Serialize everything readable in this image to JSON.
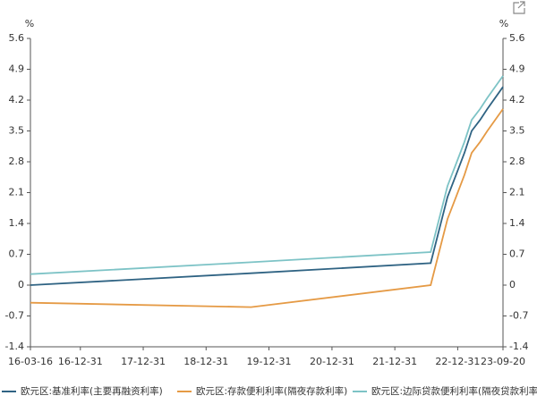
{
  "chart_data": {
    "type": "line",
    "y_unit": "%",
    "y2_unit": "%",
    "x": [
      "16-03-16",
      "19-09-18",
      "22-07-27",
      "22-09-14",
      "22-11-02",
      "22-12-21",
      "23-02-08",
      "23-03-22",
      "23-05-10",
      "23-06-21",
      "23-09-20"
    ],
    "xlim": [
      "16-03-16",
      "23-09-20"
    ],
    "xticks": [
      "16-03-16",
      "16-12-31",
      "17-12-31",
      "18-12-31",
      "19-12-31",
      "20-12-31",
      "21-12-31",
      "22-12-31",
      "23-09-20"
    ],
    "ylim": [
      -1.4,
      5.6
    ],
    "yticks": [
      -1.4,
      -0.7,
      0,
      0.7,
      1.4,
      2.1,
      2.8,
      3.5,
      4.2,
      4.9,
      5.6
    ],
    "y2lim": [
      -1.4,
      5.6
    ],
    "y2ticks": [
      -1.4,
      -0.7,
      0,
      0.7,
      1.4,
      2.1,
      2.8,
      3.5,
      4.2,
      4.9,
      5.6
    ],
    "grid": false,
    "legend": "bottom",
    "series": [
      {
        "name": "欧元区:基准利率(主要再融资利率)",
        "color": "#2f6383",
        "values": [
          0,
          0.27,
          0.5,
          1.25,
          2.0,
          2.5,
          3.0,
          3.5,
          3.75,
          4.0,
          4.5
        ]
      },
      {
        "name": "欧元区:存款便利利率(隔夜存款利率)",
        "color": "#e59a45",
        "values": [
          -0.4,
          -0.5,
          0,
          0.75,
          1.5,
          2.0,
          2.5,
          3.0,
          3.25,
          3.5,
          4.0
        ]
      },
      {
        "name": "欧元区:边际贷款便利利率(隔夜贷款利率)",
        "color": "#7dc3c6",
        "values": [
          0.25,
          0.52,
          0.75,
          1.5,
          2.25,
          2.75,
          3.25,
          3.75,
          4.0,
          4.25,
          4.75
        ]
      }
    ]
  }
}
